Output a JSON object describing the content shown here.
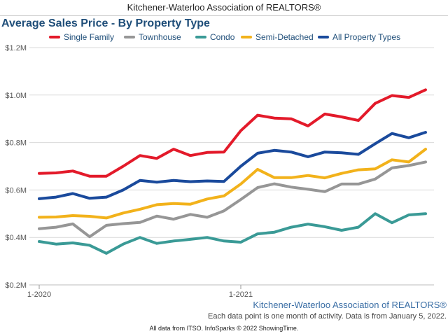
{
  "header": {
    "organization": "Kitchener-Waterloo Association of REALTORS®"
  },
  "chart_data": {
    "type": "line",
    "title": "Average Sales Price - By Property Type",
    "xlabel": "",
    "ylabel": "",
    "x": [
      "2020-01",
      "2020-02",
      "2020-03",
      "2020-04",
      "2020-05",
      "2020-06",
      "2020-07",
      "2020-08",
      "2020-09",
      "2020-10",
      "2020-11",
      "2020-12",
      "2021-01",
      "2021-02",
      "2021-03",
      "2021-04",
      "2021-05",
      "2021-06",
      "2021-07",
      "2021-08",
      "2021-09",
      "2021-10",
      "2021-11",
      "2021-12"
    ],
    "x_tick_labels": [
      "1-2020",
      "1-2021"
    ],
    "x_tick_index": [
      0,
      12
    ],
    "ylim": [
      200000,
      1200000
    ],
    "y_ticks": [
      200000,
      400000,
      600000,
      800000,
      1000000,
      1200000
    ],
    "y_tick_labels": [
      "$0.2M",
      "$0.4M",
      "$0.6M",
      "$0.8M",
      "$1.0M",
      "$1.2M"
    ],
    "grid": true,
    "legend_position": "top",
    "series": [
      {
        "name": "Single Family",
        "color": "#e31a2a",
        "values": [
          670000,
          672000,
          680000,
          658000,
          658000,
          700000,
          745000,
          733000,
          772000,
          745000,
          758000,
          760000,
          850000,
          915000,
          903000,
          900000,
          870000,
          920000,
          908000,
          893000,
          965000,
          998000,
          990000,
          1022000
        ]
      },
      {
        "name": "Townhouse",
        "color": "#969696",
        "values": [
          437000,
          443000,
          457000,
          403000,
          451000,
          458000,
          463000,
          490000,
          477000,
          497000,
          485000,
          512000,
          560000,
          610000,
          626000,
          612000,
          603000,
          593000,
          625000,
          625000,
          646000,
          693000,
          703000,
          718000
        ]
      },
      {
        "name": "Condo",
        "color": "#3a9a96",
        "values": [
          383000,
          372000,
          377000,
          367000,
          333000,
          372000,
          400000,
          375000,
          385000,
          392000,
          400000,
          385000,
          380000,
          415000,
          422000,
          443000,
          456000,
          445000,
          430000,
          443000,
          500000,
          462000,
          495000,
          500000
        ]
      },
      {
        "name": "Semi-Detached",
        "color": "#f2b21b",
        "values": [
          485000,
          486000,
          492000,
          489000,
          482000,
          503000,
          519000,
          538000,
          543000,
          540000,
          562000,
          575000,
          625000,
          687000,
          652000,
          652000,
          661000,
          651000,
          670000,
          685000,
          689000,
          727000,
          718000,
          772000
        ]
      },
      {
        "name": "All Property Types",
        "color": "#1a4a9c",
        "values": [
          563000,
          570000,
          585000,
          565000,
          570000,
          600000,
          640000,
          633000,
          640000,
          635000,
          638000,
          636000,
          700000,
          755000,
          767000,
          760000,
          740000,
          760000,
          757000,
          750000,
          795000,
          838000,
          820000,
          843000
        ]
      }
    ]
  },
  "footer": {
    "source": "Kitchener-Waterloo Association of REALTORS®",
    "note": "Each data point is one month of activity. Data is from January 5, 2022.",
    "credit": "All data from ITSO. InfoSparks © 2022 ShowingTime."
  }
}
